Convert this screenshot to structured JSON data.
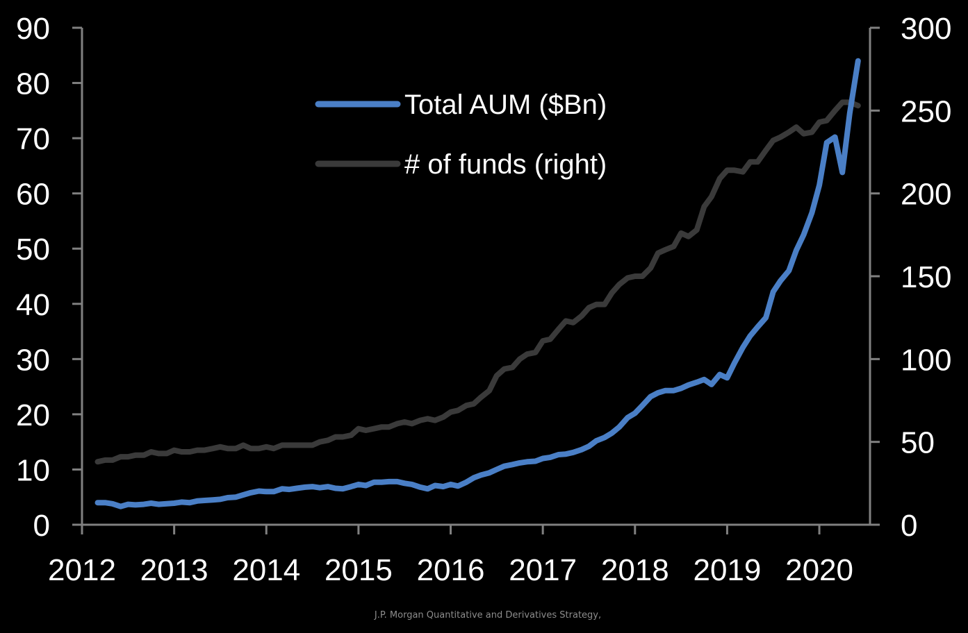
{
  "chart_data": {
    "type": "line",
    "title": "",
    "xlabel": "",
    "ylabel": "",
    "y2label": "",
    "xlim": [
      2012,
      2020.55
    ],
    "ylim": [
      0,
      90
    ],
    "y2lim": [
      0,
      300
    ],
    "x_ticks": [
      "2012",
      "2013",
      "2014",
      "2015",
      "2016",
      "2017",
      "2018",
      "2019",
      "2020"
    ],
    "y_ticks": [
      "0",
      "10",
      "20",
      "30",
      "40",
      "50",
      "60",
      "70",
      "80",
      "90"
    ],
    "y2_ticks": [
      "0",
      "50",
      "100",
      "150",
      "200",
      "250",
      "300"
    ],
    "grid": false,
    "legend_position": "top-center",
    "series": [
      {
        "name": "Total AUM ($Bn)",
        "axis": "left",
        "color": "#4a7fc6",
        "x": [
          2012.17,
          2012.25,
          2012.33,
          2012.42,
          2012.5,
          2012.58,
          2012.67,
          2012.75,
          2012.83,
          2012.92,
          2013.0,
          2013.08,
          2013.17,
          2013.25,
          2013.33,
          2013.42,
          2013.5,
          2013.58,
          2013.67,
          2013.75,
          2013.83,
          2013.92,
          2014.0,
          2014.08,
          2014.17,
          2014.25,
          2014.33,
          2014.42,
          2014.5,
          2014.58,
          2014.67,
          2014.75,
          2014.83,
          2014.92,
          2015.0,
          2015.08,
          2015.17,
          2015.25,
          2015.33,
          2015.42,
          2015.5,
          2015.58,
          2015.67,
          2015.75,
          2015.83,
          2015.92,
          2016.0,
          2016.08,
          2016.17,
          2016.25,
          2016.33,
          2016.42,
          2016.5,
          2016.58,
          2016.67,
          2016.75,
          2016.83,
          2016.92,
          2017.0,
          2017.08,
          2017.17,
          2017.25,
          2017.33,
          2017.42,
          2017.5,
          2017.58,
          2017.67,
          2017.75,
          2017.83,
          2017.92,
          2018.0,
          2018.08,
          2018.17,
          2018.25,
          2018.33,
          2018.42,
          2018.5,
          2018.58,
          2018.67,
          2018.75,
          2018.83,
          2018.92,
          2019.0,
          2019.08,
          2019.17,
          2019.25,
          2019.33,
          2019.42,
          2019.5,
          2019.58,
          2019.67,
          2019.75,
          2019.83,
          2019.92,
          2020.0,
          2020.08,
          2020.17,
          2020.25,
          2020.33,
          2020.42
        ],
        "values": [
          4.0,
          4.0,
          3.8,
          3.3,
          3.7,
          3.6,
          3.7,
          3.9,
          3.7,
          3.8,
          3.9,
          4.1,
          4.0,
          4.3,
          4.4,
          4.5,
          4.6,
          4.9,
          5.0,
          5.4,
          5.8,
          6.1,
          6.0,
          6.0,
          6.5,
          6.4,
          6.6,
          6.8,
          6.9,
          6.7,
          6.9,
          6.6,
          6.5,
          6.9,
          7.3,
          7.1,
          7.7,
          7.7,
          7.8,
          7.8,
          7.5,
          7.3,
          6.8,
          6.5,
          7.1,
          6.9,
          7.3,
          7.0,
          7.7,
          8.5,
          9.0,
          9.4,
          10.0,
          10.6,
          10.9,
          11.2,
          11.4,
          11.5,
          12.0,
          12.2,
          12.7,
          12.8,
          13.1,
          13.6,
          14.2,
          15.2,
          15.8,
          16.6,
          17.7,
          19.4,
          20.2,
          21.6,
          23.2,
          23.9,
          24.3,
          24.3,
          24.7,
          25.3,
          25.8,
          26.3,
          25.4,
          27.2,
          26.6,
          29.3,
          32.1,
          34.2,
          35.8,
          37.5,
          42.2,
          44.2,
          46.0,
          49.7,
          52.5,
          56.5,
          61.5,
          69.2,
          70.2,
          63.8,
          74.5,
          84.0
        ]
      },
      {
        "name": "# of funds (right)",
        "axis": "right",
        "color": "#3a3a3a",
        "x": [
          2012.17,
          2012.25,
          2012.33,
          2012.42,
          2012.5,
          2012.58,
          2012.67,
          2012.75,
          2012.83,
          2012.92,
          2013.0,
          2013.08,
          2013.17,
          2013.25,
          2013.33,
          2013.42,
          2013.5,
          2013.58,
          2013.67,
          2013.75,
          2013.83,
          2013.92,
          2014.0,
          2014.08,
          2014.17,
          2014.25,
          2014.33,
          2014.42,
          2014.5,
          2014.58,
          2014.67,
          2014.75,
          2014.83,
          2014.92,
          2015.0,
          2015.08,
          2015.17,
          2015.25,
          2015.33,
          2015.42,
          2015.5,
          2015.58,
          2015.67,
          2015.75,
          2015.83,
          2015.92,
          2016.0,
          2016.08,
          2016.17,
          2016.25,
          2016.33,
          2016.42,
          2016.5,
          2016.58,
          2016.67,
          2016.75,
          2016.83,
          2016.92,
          2017.0,
          2017.08,
          2017.17,
          2017.25,
          2017.33,
          2017.42,
          2017.5,
          2017.58,
          2017.67,
          2017.75,
          2017.83,
          2017.92,
          2018.0,
          2018.08,
          2018.17,
          2018.25,
          2018.33,
          2018.42,
          2018.5,
          2018.58,
          2018.67,
          2018.75,
          2018.83,
          2018.92,
          2019.0,
          2019.08,
          2019.17,
          2019.25,
          2019.33,
          2019.42,
          2019.5,
          2019.58,
          2019.67,
          2019.75,
          2019.83,
          2019.92,
          2020.0,
          2020.08,
          2020.17,
          2020.25,
          2020.33,
          2020.42
        ],
        "values": [
          38,
          39,
          39,
          41,
          41,
          42,
          42,
          44,
          43,
          43,
          45,
          44,
          44,
          45,
          45,
          46,
          47,
          46,
          46,
          48,
          46,
          46,
          47,
          46,
          48,
          48,
          48,
          48,
          48,
          50,
          51,
          53,
          53,
          54,
          58,
          57,
          58,
          59,
          59,
          61,
          62,
          61,
          63,
          64,
          63,
          65,
          68,
          69,
          72,
          73,
          77,
          81,
          90,
          94,
          95,
          100,
          103,
          104,
          111,
          112,
          118,
          123,
          122,
          126,
          131,
          133,
          133,
          140,
          145,
          149,
          150,
          150,
          155,
          164,
          166,
          168,
          176,
          174,
          178,
          192,
          198,
          209,
          214,
          214,
          213,
          219,
          219,
          226,
          232,
          234,
          237,
          240,
          236,
          237,
          243,
          244,
          250,
          255,
          255,
          253
        ]
      }
    ]
  },
  "source": "J.P. Morgan Quantitative and Derivatives Strategy,"
}
